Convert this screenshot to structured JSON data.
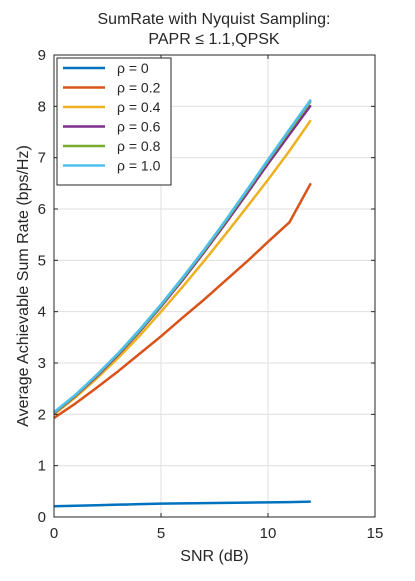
{
  "chart_data": {
    "type": "line",
    "title": [
      "SumRate with Nyquist Sampling:",
      "PAPR ≤ 1.1,QPSK"
    ],
    "xlabel": "SNR (dB)",
    "ylabel": "Average Achievable Sum Rate (bps/Hz)",
    "xlim": [
      0,
      15
    ],
    "ylim": [
      0,
      9
    ],
    "xticks": [
      0,
      5,
      10,
      15
    ],
    "yticks": [
      0,
      1,
      2,
      3,
      4,
      5,
      6,
      7,
      8,
      9
    ],
    "grid": true,
    "legend_position": "top-left",
    "x": [
      0,
      1,
      2,
      3,
      4,
      5,
      6,
      7,
      8,
      9,
      10,
      11,
      12
    ],
    "series": [
      {
        "name": "ρ = 0",
        "color": "#0072BD",
        "values": [
          0.21,
          0.22,
          0.23,
          0.24,
          0.25,
          0.26,
          0.265,
          0.27,
          0.275,
          0.28,
          0.285,
          0.29,
          0.3
        ]
      },
      {
        "name": "ρ = 0.2",
        "color": "#D95319",
        "values": [
          1.93,
          2.21,
          2.52,
          2.84,
          3.18,
          3.52,
          3.88,
          4.23,
          4.6,
          4.97,
          5.36,
          5.74,
          6.5
        ]
      },
      {
        "name": "ρ = 0.4",
        "color": "#EDB120",
        "values": [
          2.0,
          2.33,
          2.7,
          3.1,
          3.53,
          4.0,
          4.48,
          4.98,
          5.5,
          6.03,
          6.57,
          7.13,
          7.73
        ]
      },
      {
        "name": "ρ = 0.6",
        "color": "#7E2F8E",
        "values": [
          2.02,
          2.36,
          2.74,
          3.16,
          3.61,
          4.1,
          4.61,
          5.15,
          5.71,
          6.29,
          6.88,
          7.45,
          8.02
        ]
      },
      {
        "name": "ρ = 0.8",
        "color": "#77AC30",
        "values": [
          2.03,
          2.37,
          2.76,
          3.18,
          3.63,
          4.12,
          4.64,
          5.18,
          5.75,
          6.34,
          6.94,
          7.52,
          8.1
        ]
      },
      {
        "name": "ρ = 1.0",
        "color": "#4DBEEE",
        "values": [
          2.04,
          2.38,
          2.77,
          3.19,
          3.65,
          4.14,
          4.66,
          5.2,
          5.77,
          6.36,
          6.96,
          7.55,
          8.13
        ]
      }
    ]
  }
}
